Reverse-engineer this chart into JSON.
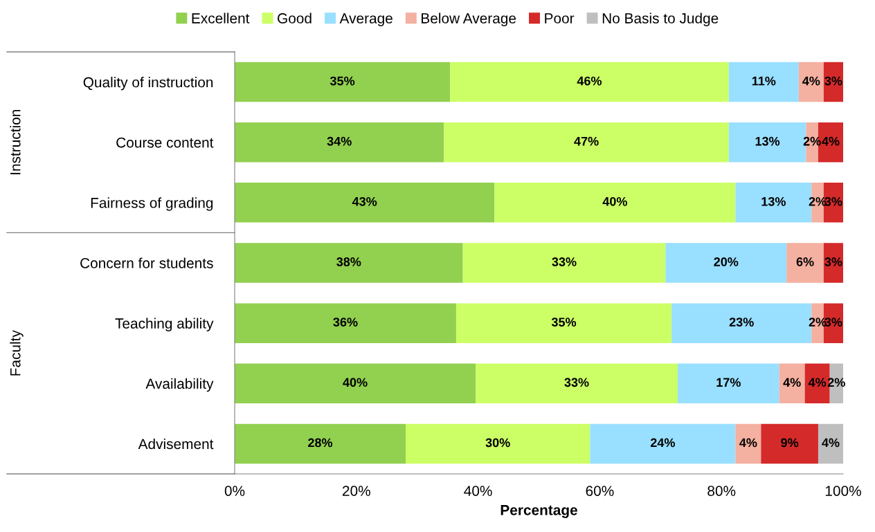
{
  "chart_data": {
    "type": "bar",
    "orientation": "horizontal",
    "stacked": true,
    "xlabel": "Percentage",
    "categories": [
      "Quality of instruction",
      "Course content",
      "Fairness of grading",
      "Concern for students",
      "Teaching ability",
      "Availability",
      "Advisement"
    ],
    "series": [
      {
        "name": "Excellent",
        "color": "#92d050",
        "values": [
          35.4,
          34.4,
          42.7,
          37.5,
          36.4,
          39.6,
          28.1
        ],
        "value_labels": [
          "35%",
          "34%",
          "43%",
          "38%",
          "36%",
          "40%",
          "28%"
        ]
      },
      {
        "name": "Good",
        "color": "#ccff66",
        "values": [
          45.8,
          46.8,
          39.6,
          33.3,
          35.4,
          33.2,
          30.3
        ],
        "value_labels": [
          "46%",
          "47%",
          "40%",
          "33%",
          "35%",
          "33%",
          "30%"
        ]
      },
      {
        "name": "Average",
        "color": "#99dfff",
        "values": [
          11.5,
          12.7,
          12.5,
          19.9,
          23.0,
          16.7,
          23.9
        ],
        "value_labels": [
          "11%",
          "13%",
          "13%",
          "20%",
          "23%",
          "17%",
          "24%"
        ]
      },
      {
        "name": "Below Average",
        "color": "#f4b0a0",
        "values": [
          4.1,
          2.0,
          2.0,
          6.1,
          2.0,
          4.2,
          4.2
        ],
        "value_labels": [
          "4%",
          "2%",
          "2%",
          "6%",
          "2%",
          "4%",
          "4%"
        ]
      },
      {
        "name": "Poor",
        "color": "#d42a2a",
        "values": [
          3.2,
          4.1,
          3.2,
          3.2,
          3.2,
          4.1,
          9.4
        ],
        "value_labels": [
          "3%",
          "4%",
          "3%",
          "3%",
          "3%",
          "4%",
          "9%"
        ]
      },
      {
        "name": "No Basis to Judge",
        "color": "#bfbfbf",
        "values": [
          null,
          null,
          null,
          null,
          null,
          2.2,
          4.1
        ],
        "value_labels": [
          null,
          null,
          null,
          null,
          null,
          "2%",
          "4%"
        ]
      }
    ],
    "xlim": [
      0,
      100
    ],
    "xticks": [
      {
        "value": 0,
        "label": "0%"
      },
      {
        "value": 20,
        "label": "20%"
      },
      {
        "value": 40,
        "label": "40%"
      },
      {
        "value": 60,
        "label": "60%"
      },
      {
        "value": 80,
        "label": "80%"
      },
      {
        "value": 100,
        "label": "100%"
      }
    ],
    "annotations": [
      "Instruction",
      "Faculty"
    ],
    "legend": "top",
    "grid": false
  }
}
